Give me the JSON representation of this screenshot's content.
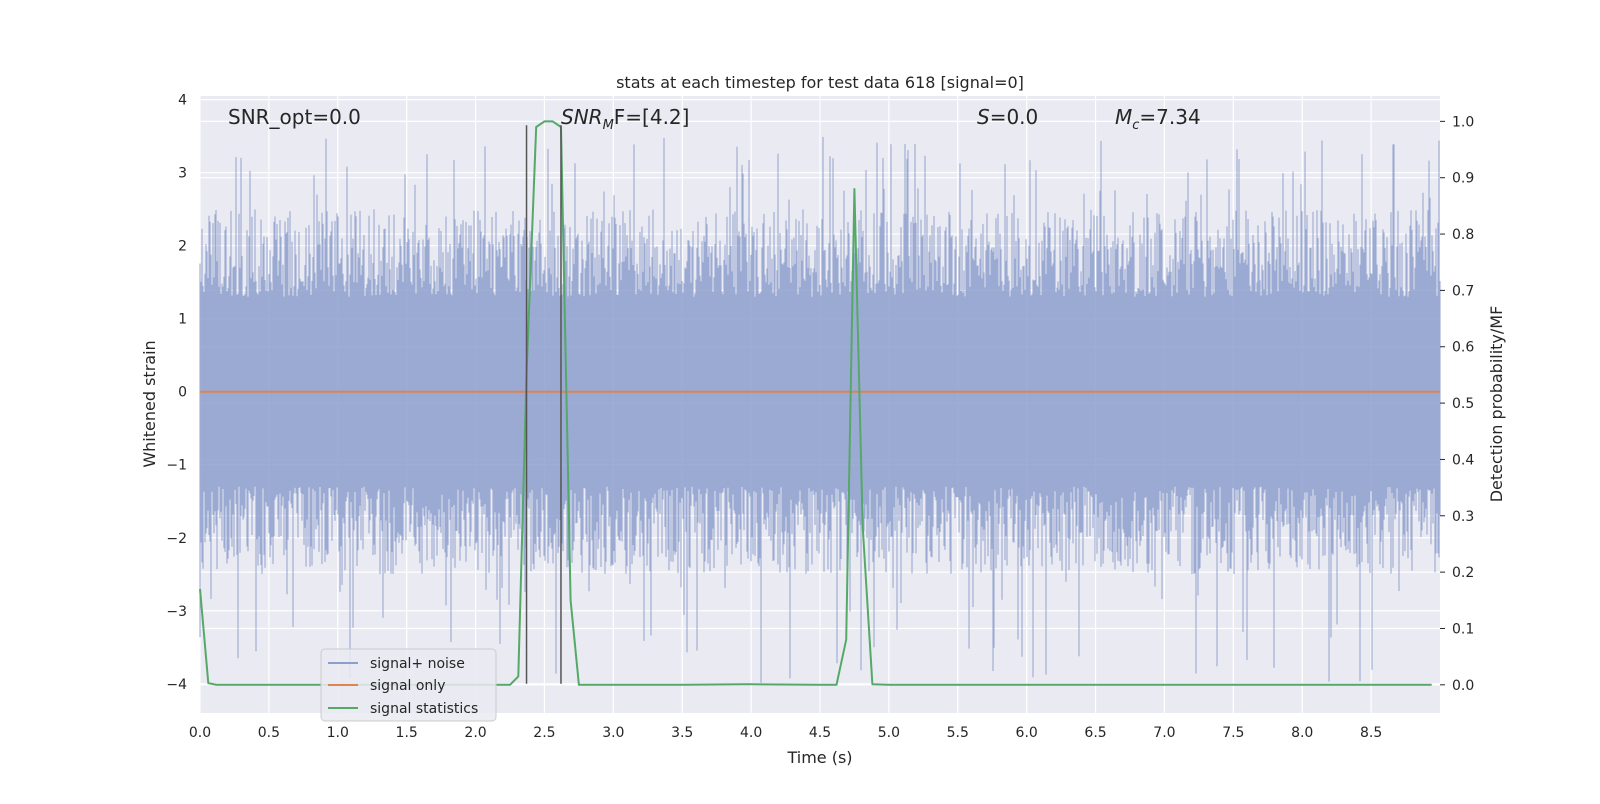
{
  "chart_data": {
    "type": "line",
    "title": "stats at each timestep for test data 618 [signal=0]",
    "xlabel": "Time (s)",
    "ylabel": "Whitened strain",
    "y2label": "Detection probability/MF",
    "xlim": [
      0.0,
      9.0
    ],
    "ylim": [
      -4.4,
      4.05
    ],
    "y2lim": [
      -0.05,
      1.045
    ],
    "x_ticks": [
      "0.0",
      "0.5",
      "1.0",
      "1.5",
      "2.0",
      "2.5",
      "3.0",
      "3.5",
      "4.0",
      "4.5",
      "5.0",
      "5.5",
      "6.0",
      "6.5",
      "7.0",
      "7.5",
      "8.0",
      "8.5"
    ],
    "y_ticks": [
      "4",
      "3",
      "2",
      "1",
      "0",
      "−1",
      "−2",
      "−3",
      "−4"
    ],
    "y2_ticks": [
      "1.0",
      "0.9",
      "0.8",
      "0.7",
      "0.6",
      "0.5",
      "0.4",
      "0.3",
      "0.2",
      "0.1",
      "0.0"
    ],
    "grid": true,
    "legend_position": "lower-left",
    "annotations": [
      {
        "text": "SNR_opt=0.0",
        "x": 0.2,
        "y": 3.75
      },
      {
        "base": "SNR",
        "sub": "M",
        "rest": "F=[4.2]",
        "x": 2.6,
        "y": 3.75
      },
      {
        "base": "S",
        "sub": "",
        "rest": "=0.0",
        "x": 5.6,
        "y": 3.75
      },
      {
        "base": "M",
        "sub": "c",
        "rest": "=7.34",
        "x": 6.6,
        "y": 3.75
      }
    ],
    "vlines": [
      {
        "x": 2.37,
        "ymin": -4.0,
        "ymax": 3.65
      },
      {
        "x": 2.62,
        "ymin": -4.0,
        "ymax": 3.65
      }
    ],
    "series": [
      {
        "name": "signal+ noise",
        "color": "#8c9fcc",
        "kind": "noise",
        "sample_rate_hz": 2048,
        "duration_s": 9.0,
        "envelope": [
          1.3,
          2.5
        ],
        "peak_range": [
          -4.0,
          3.5
        ]
      },
      {
        "name": "signal only",
        "color": "#dd8452",
        "kind": "line",
        "x": [
          0.0,
          9.0
        ],
        "y": [
          0.0,
          0.0
        ]
      },
      {
        "name": "signal statistics",
        "color": "#55a868",
        "kind": "line",
        "axis": "right",
        "x": [
          0.0,
          0.06,
          0.12,
          0.5,
          1.0,
          1.5,
          2.0,
          2.25,
          2.31,
          2.37,
          2.44,
          2.5,
          2.56,
          2.62,
          2.69,
          2.75,
          3.0,
          3.5,
          3.94,
          4.0,
          4.5,
          4.62,
          4.69,
          4.75,
          4.81,
          4.88,
          5.0,
          6.0,
          7.0,
          8.0,
          8.94
        ],
        "y": [
          0.17,
          0.003,
          0.0,
          0.0,
          0.0,
          0.0,
          0.0,
          0.0,
          0.015,
          0.55,
          0.99,
          1.0,
          1.0,
          0.99,
          0.15,
          0.0,
          0.0,
          0.0,
          0.001,
          0.001,
          0.0,
          0.0,
          0.08,
          0.88,
          0.28,
          0.001,
          0.0,
          0.0,
          0.0,
          0.0,
          0.0
        ]
      }
    ]
  }
}
